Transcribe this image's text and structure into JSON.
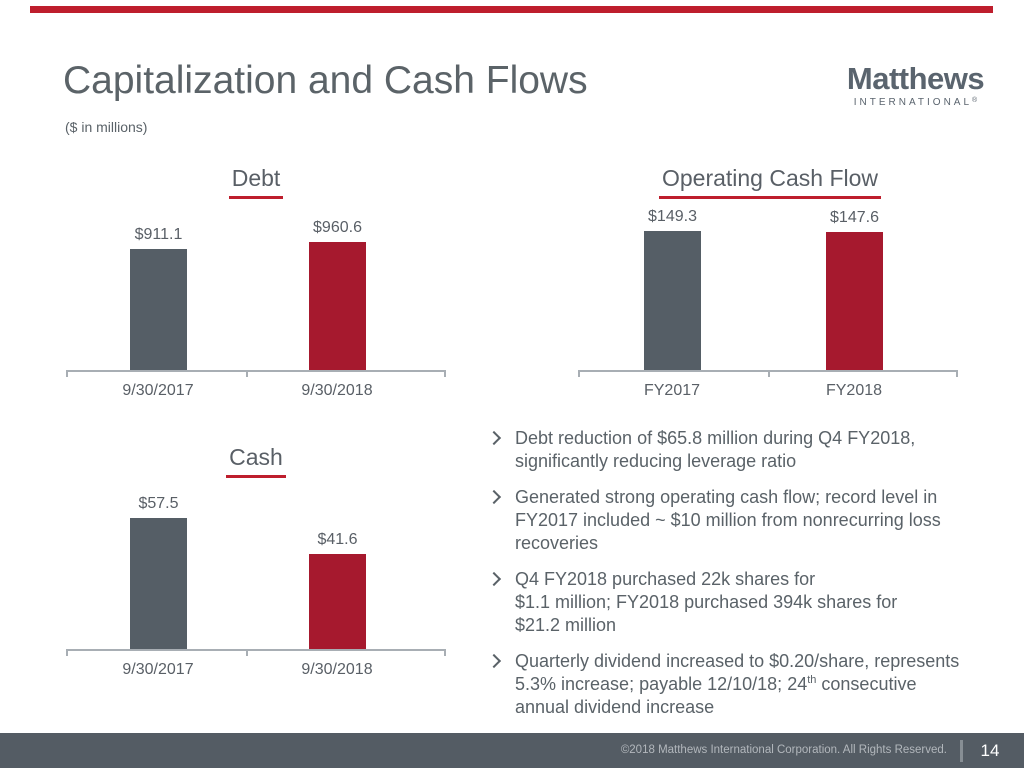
{
  "slide": {
    "title": "Capitalization and Cash Flows",
    "subtitle": "($ in millions)",
    "page_number": "14",
    "footer_copyright": "©2018 Matthews International Corporation. All Rights Reserved."
  },
  "logo": {
    "name": "Matthews",
    "subtext": "INTERNATIONAL",
    "trademark": "®"
  },
  "colors": {
    "accent_red": "#BE1E2D",
    "bar_red": "#A6192E",
    "bar_gray": "#555E66",
    "text_gray": "#5A6268",
    "axis_gray": "#A8AEB4",
    "footer_bg": "#545C64"
  },
  "bullet_marker": "➢",
  "chart_data": [
    {
      "id": "debt",
      "type": "bar",
      "title": "Debt",
      "categories": [
        "9/30/2017",
        "9/30/2018"
      ],
      "values": [
        911.1,
        960.6
      ],
      "labels": [
        "$911.1",
        "$960.6"
      ],
      "bar_colors": [
        "#555E66",
        "#A6192E"
      ],
      "ylim": [
        0,
        1060
      ],
      "xlabel": "",
      "ylabel": "",
      "grid": false,
      "legend": false
    },
    {
      "id": "operating_cash_flow",
      "type": "bar",
      "title": "Operating Cash Flow",
      "categories": [
        "FY2017",
        "FY2018"
      ],
      "values": [
        149.3,
        147.6
      ],
      "labels": [
        "$149.3",
        "$147.6"
      ],
      "bar_colors": [
        "#555E66",
        "#A6192E"
      ],
      "ylim": [
        0,
        151
      ],
      "xlabel": "",
      "ylabel": "",
      "grid": false,
      "legend": false
    },
    {
      "id": "cash",
      "type": "bar",
      "title": "Cash",
      "categories": [
        "9/30/2017",
        "9/30/2018"
      ],
      "values": [
        57.5,
        41.6
      ],
      "labels": [
        "$57.5",
        "$41.6"
      ],
      "bar_colors": [
        "#555E66",
        "#A6192E"
      ],
      "ylim": [
        0,
        62
      ],
      "xlabel": "",
      "ylabel": "",
      "grid": false,
      "legend": false
    }
  ],
  "bullets": [
    {
      "lines": [
        "Debt reduction of $65.8 million during Q4 FY2018,",
        "significantly reducing leverage ratio"
      ]
    },
    {
      "lines": [
        "Generated strong operating cash flow; record level in",
        "FY2017 included ~ $10 million from nonrecurring loss",
        "recoveries"
      ]
    },
    {
      "lines": [
        "Q4 FY2018 purchased 22k shares for",
        "$1.1 million; FY2018 purchased 394k shares for",
        "$21.2 million"
      ]
    },
    {
      "line1": "Quarterly dividend increased to $0.20/share, represents",
      "line2_pre": "5.3% increase; payable 12/10/18; 24",
      "line2_sup": "th",
      "line2_post": " consecutive",
      "line3": "annual dividend increase"
    }
  ]
}
